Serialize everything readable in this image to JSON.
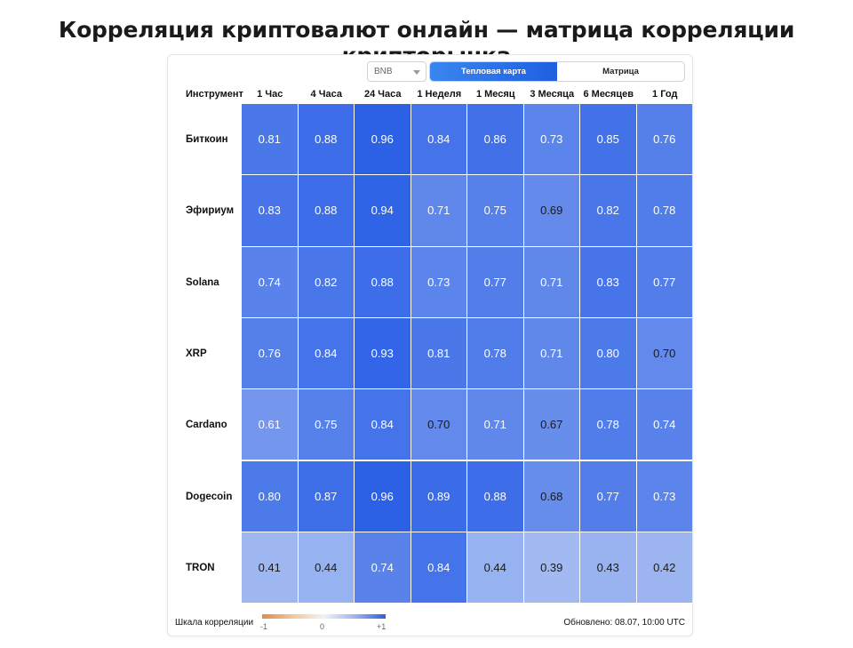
{
  "title": "Корреляция криптовалют онлайн — матрица корреляции крипторынка",
  "controls": {
    "asset_select": "BNB",
    "views": [
      {
        "label": "Тепловая карта",
        "active": true
      },
      {
        "label": "Матрица",
        "active": false
      }
    ]
  },
  "table": {
    "corner_label": "Инструмент",
    "columns": [
      "1 Час",
      "4 Часа",
      "24 Часа",
      "1 Неделя",
      "1 Месяц",
      "3 Месяца",
      "6 Месяцев",
      "1 Год"
    ],
    "rows": [
      {
        "name": "Биткоин",
        "values": [
          "0.81",
          "0.88",
          "0.96",
          "0.84",
          "0.86",
          "0.73",
          "0.85",
          "0.76"
        ]
      },
      {
        "name": "Эфириум",
        "values": [
          "0.83",
          "0.88",
          "0.94",
          "0.71",
          "0.75",
          "0.69",
          "0.82",
          "0.78"
        ]
      },
      {
        "name": "Solana",
        "values": [
          "0.74",
          "0.82",
          "0.88",
          "0.73",
          "0.77",
          "0.71",
          "0.83",
          "0.77"
        ]
      },
      {
        "name": "XRP",
        "values": [
          "0.76",
          "0.84",
          "0.93",
          "0.81",
          "0.78",
          "0.71",
          "0.80",
          "0.70"
        ]
      },
      {
        "name": "Cardano",
        "values": [
          "0.61",
          "0.75",
          "0.84",
          "0.70",
          "0.71",
          "0.67",
          "0.78",
          "0.74"
        ]
      },
      {
        "name": "Dogecoin",
        "values": [
          "0.80",
          "0.87",
          "0.96",
          "0.89",
          "0.88",
          "0.68",
          "0.77",
          "0.73"
        ]
      },
      {
        "name": "TRON",
        "values": [
          "0.41",
          "0.44",
          "0.74",
          "0.84",
          "0.44",
          "0.39",
          "0.43",
          "0.42"
        ]
      }
    ]
  },
  "legend": {
    "label": "Шкала корреляции",
    "min": "-1",
    "mid": "0",
    "max": "+1"
  },
  "updated": "Обновлено: 08.07, 10:00 UTC",
  "colors": {
    "heat_low": "#aac0f2",
    "heat_high": "#2a5fe6",
    "accent": "#2a6ce8"
  }
}
